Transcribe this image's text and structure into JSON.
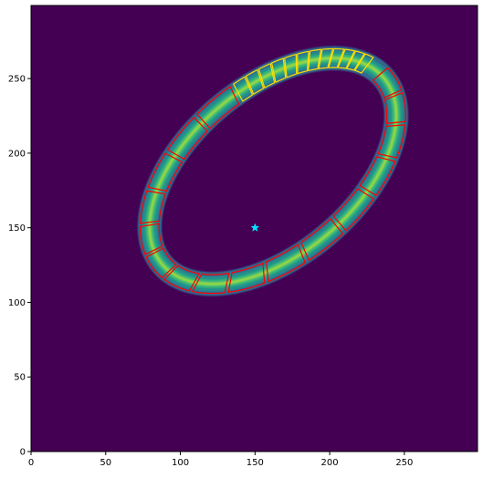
{
  "chart_data": {
    "type": "heatmap",
    "title": "",
    "xlabel": "",
    "ylabel": "",
    "xlim": [
      0,
      299
    ],
    "ylim": [
      0,
      299
    ],
    "x_ticks": [
      0,
      50,
      100,
      150,
      200,
      250
    ],
    "y_ticks": [
      0,
      50,
      100,
      150,
      200,
      250
    ],
    "x_tick_labels": [
      "0",
      "50",
      "100",
      "150",
      "200",
      "250"
    ],
    "y_tick_labels": [
      "0",
      "50",
      "100",
      "150",
      "200",
      "250"
    ],
    "colormap": "viridis",
    "background_color": "#440154",
    "ring": {
      "center": [
        162,
        188
      ],
      "semi_major": 97,
      "semi_minor": 56,
      "rotation_deg": 40,
      "band_width": 5
    },
    "center_marker": {
      "x": 150,
      "y": 150,
      "shape": "star",
      "color": "#00e5ff"
    },
    "outlines": {
      "red_segments": {
        "color": "#ff0000",
        "count": 16,
        "t_range_deg": [
          82,
          365
        ]
      },
      "yellow_segments": {
        "color": "#ffdd00",
        "count": 12,
        "t_range_deg": [
          14,
          81
        ]
      }
    },
    "grid": false,
    "legend": "none"
  }
}
